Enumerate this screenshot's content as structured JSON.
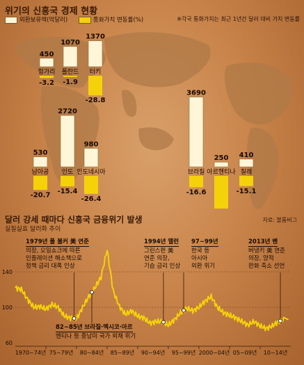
{
  "header": {
    "title": "위기의 신흥국 경제 현황",
    "legend_reserves": "외환보유액(억달러)",
    "legend_currency": "통화가치 변동률(%)",
    "note": "※각국 통화가치는 최근 1년간 달러 대비 가치 변동률",
    "reserves_color": "#fff6d8",
    "currency_color": "#f5d10a"
  },
  "chart_data": [
    {
      "type": "bar",
      "categories": [
        "헝가리",
        "폴란드",
        "터키",
        "남아공",
        "인도",
        "인도네시아",
        "브라질",
        "아르헨티나",
        "칠레"
      ],
      "series": [
        {
          "name": "외환보유액(억달러)",
          "values": [
            450,
            1070,
            1370,
            530,
            2720,
            980,
            3690,
            250,
            410
          ]
        },
        {
          "name": "통화가치 변동률(%)",
          "values": [
            -3.2,
            -1.9,
            -28.8,
            -20.7,
            -15.4,
            -26.4,
            -16.6,
            -58.8,
            -15.1
          ]
        }
      ],
      "value_labels_reserves": [
        "450",
        "1070",
        "1370",
        "530",
        "2720",
        "980",
        "3690",
        "250",
        "410"
      ],
      "value_labels_change": [
        "-3.2",
        "-1.9",
        "-28.8",
        "-20.7",
        "-15.4",
        "-26.4",
        "-16.6",
        "-58.8",
        "-15.1"
      ]
    },
    {
      "type": "line",
      "title": "달러 강세 때마다 신흥국 금융위기 발생",
      "subtitle": "실질실효 달러화 추이",
      "source": "자료: 블룸버그",
      "ylim": [
        60,
        180
      ],
      "y_ticks": [
        "140",
        "100",
        "60"
      ],
      "x_ticks": [
        "1970~74년",
        "75~79년",
        "80~84년",
        "85~89년",
        "90~94년",
        "95~99년",
        "2000~04년",
        "05~09년",
        "10~14년"
      ],
      "x": [
        1970,
        1971,
        1972,
        1973,
        1974,
        1975,
        1976,
        1977,
        1978,
        1979,
        1980,
        1981,
        1982,
        1983,
        1984,
        1985,
        1986,
        1987,
        1988,
        1989,
        1990,
        1991,
        1992,
        1993,
        1994,
        1995,
        1996,
        1997,
        1998,
        1999,
        2000,
        2001,
        2002,
        2003,
        2004,
        2005,
        2006,
        2007,
        2008,
        2009,
        2010,
        2011,
        2012,
        2013,
        2014
      ],
      "values": [
        122,
        120,
        109,
        100,
        101,
        98,
        103,
        100,
        90,
        88,
        87,
        100,
        112,
        122,
        134,
        165,
        118,
        101,
        92,
        96,
        90,
        88,
        82,
        84,
        84,
        80,
        86,
        94,
        99,
        96,
        100,
        107,
        112,
        100,
        94,
        91,
        88,
        84,
        80,
        84,
        79,
        76,
        79,
        84,
        86
      ],
      "line_color": "#f5d10a",
      "annotations": [
        {
          "heading": "1979년 폴 볼커 美 연준",
          "lines": [
            "의장, 오일쇼크에 따른",
            "인플레이션 해소책으로",
            "정책 금리 대폭 인상"
          ]
        },
        {
          "heading": "82~85년 브라질·멕시코·아르",
          "lines": [
            "헨티나 등 중남미 국가 외채 위기"
          ]
        },
        {
          "heading": "1994년 앨런",
          "lines": [
            "그린스펀 美",
            "연준 의장,",
            "기습 금리 인상"
          ]
        },
        {
          "heading": "97~99년",
          "lines": [
            "한국 등",
            "아시아",
            "외환 위기"
          ]
        },
        {
          "heading": "2013년 벤",
          "lines": [
            "버냉키 美 연준",
            "의장, 양적",
            "완화 축소 선언"
          ]
        }
      ]
    }
  ]
}
